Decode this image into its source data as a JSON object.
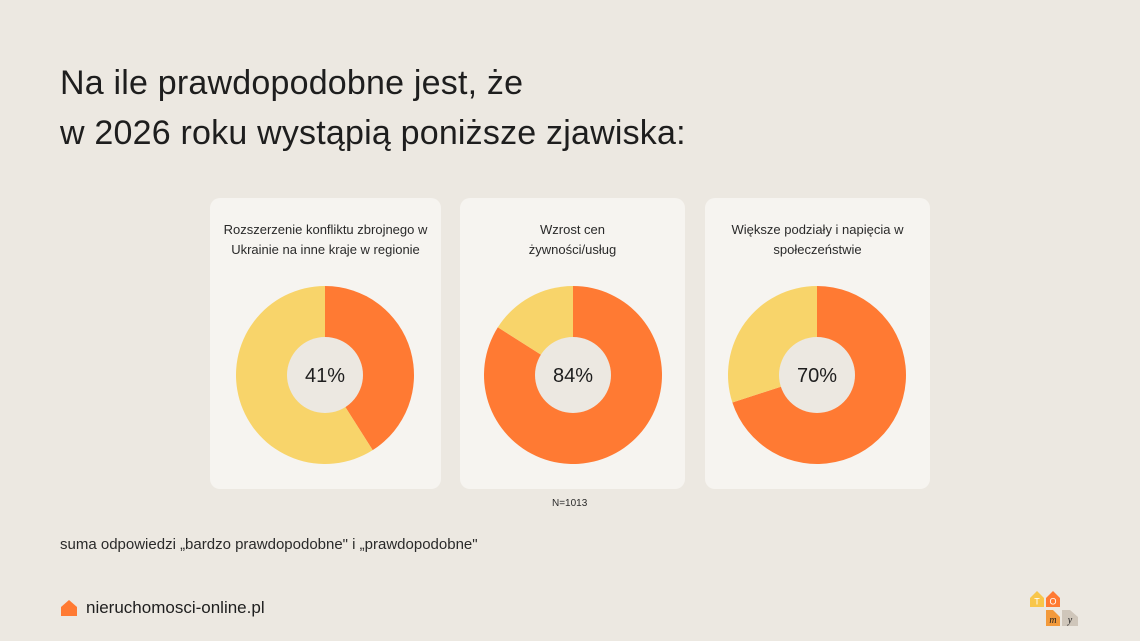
{
  "title": {
    "line1": "Na ile prawdopodobne jest, że",
    "line2": "w 2026 roku wystąpią poniższe zjawiska:"
  },
  "colors": {
    "primary": "#FF7A33",
    "secondary": "#F8D46A",
    "card_bg": "#F6F4F0",
    "center_bg": "#ECE8E1",
    "page_bg": "#ECE8E1"
  },
  "chart_data": [
    {
      "type": "pie",
      "title": "Rozszerzenie konfliktu zbrojnego w Ukrainie na inne kraje w regionie",
      "value": 41,
      "label": "41%",
      "slices": [
        41,
        59
      ]
    },
    {
      "type": "pie",
      "title": "Wzrost cen żywności/usług",
      "value": 84,
      "label": "84%",
      "slices": [
        84,
        16
      ]
    },
    {
      "type": "pie",
      "title": "Większe podziały i napięcia w społeczeństwie",
      "value": 70,
      "label": "70%",
      "slices": [
        70,
        30
      ]
    }
  ],
  "sample_note": "N=1013",
  "footnote": "suma odpowiedzi „bardzo prawdopodobne\" i „prawdopodobne\"",
  "brand": {
    "text": "nieruchomosci-online.pl",
    "icon": "house-icon"
  },
  "logo": {
    "letters": [
      "T",
      "O",
      "m",
      "y"
    ]
  }
}
